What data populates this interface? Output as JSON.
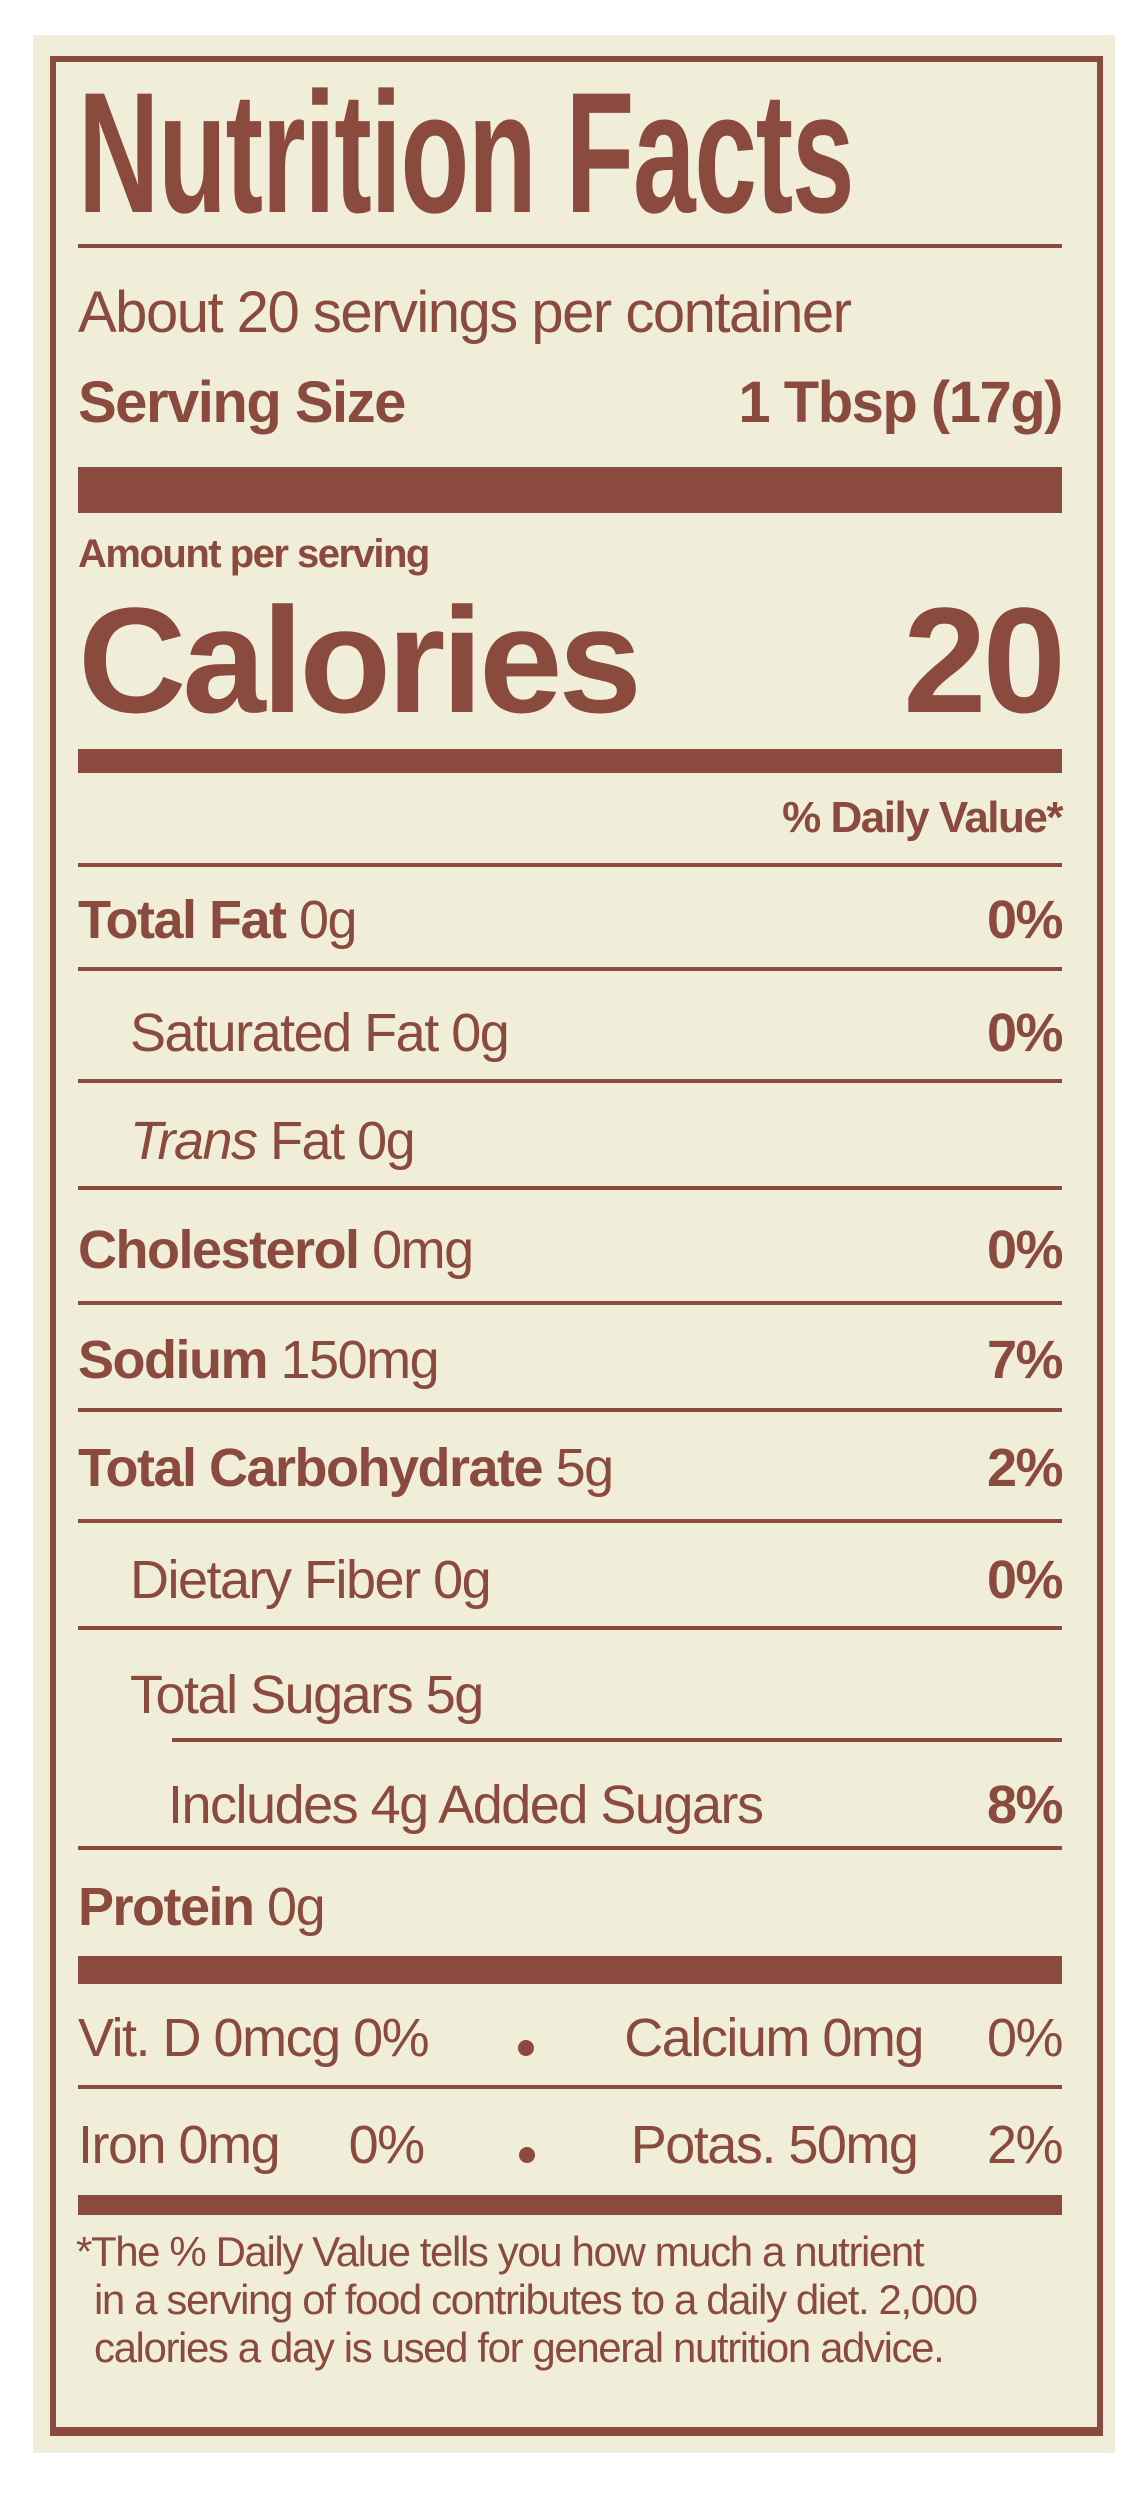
{
  "label": {
    "title": "Nutrition Facts",
    "servings_per_container": "About 20 servings per container",
    "serving_size_label": "Serving Size",
    "serving_size_value": "1 Tbsp (17g)",
    "amount_per_serving": "Amount per serving",
    "calories_label": "Calories",
    "calories_value": "20",
    "daily_value_header": "% Daily Value*",
    "nutrients": [
      {
        "name": "Total Fat",
        "amount": "0g",
        "dv": "0%"
      },
      {
        "name": "Saturated Fat",
        "amount": "0g",
        "dv": "0%"
      },
      {
        "name": "Trans",
        "name_suffix": "Fat",
        "amount": "0g",
        "dv": ""
      },
      {
        "name": "Cholesterol",
        "amount": "0mg",
        "dv": "0%"
      },
      {
        "name": "Sodium",
        "amount": "150mg",
        "dv": "7%"
      },
      {
        "name": "Total Carbohydrate",
        "amount": "5g",
        "dv": "2%"
      },
      {
        "name": "Dietary Fiber",
        "amount": "0g",
        "dv": "0%"
      },
      {
        "name": "Total Sugars",
        "amount": "5g",
        "dv": ""
      },
      {
        "name": "Includes 4g Added Sugars",
        "amount": "",
        "dv": "8%"
      },
      {
        "name": "Protein",
        "amount": "0g",
        "dv": ""
      }
    ],
    "micronutrients": [
      {
        "name": "Vit. D 0mcg",
        "dv": "0%"
      },
      {
        "name": "Calcium 0mg",
        "dv": "0%"
      },
      {
        "name": "Iron 0mg",
        "dv": "0%"
      },
      {
        "name": "Potas. 50mg",
        "dv": "2%"
      }
    ],
    "footnote": [
      "*The % Daily Value tells you how much a nutrient",
      "in a serving of food contributes to a daily diet. 2,000",
      "calories a day is used for general nutrition advice."
    ]
  },
  "colors": {
    "ink": "#8a4a3e",
    "background": "#f0eed9"
  }
}
